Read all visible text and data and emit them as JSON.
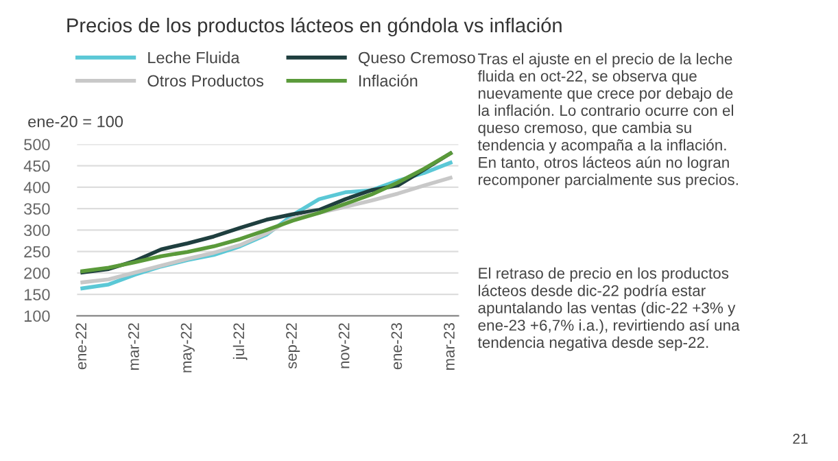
{
  "chart_data": {
    "type": "line",
    "title": "Precios de los productos lácteos en góndola vs inflación",
    "ylabel": "ene-20 = 100",
    "categories": [
      "ene-22",
      null,
      "mar-22",
      null,
      "may-22",
      null,
      "jul-22",
      null,
      "sep-22",
      null,
      "nov-22",
      null,
      "ene-23",
      null,
      "mar-23"
    ],
    "series": [
      {
        "name": "Leche Fluida",
        "color": "#5bc8d6",
        "values": [
          164,
          173,
          196,
          215,
          230,
          242,
          262,
          289,
          335,
          372,
          388,
          393,
          415,
          433,
          457
        ]
      },
      {
        "name": "Queso Cremoso",
        "color": "#1f3f3f",
        "values": [
          201,
          209,
          228,
          255,
          269,
          285,
          305,
          324,
          337,
          347,
          372,
          393,
          404,
          441,
          479
        ]
      },
      {
        "name": "Otros Productos",
        "color": "#c8c8c8",
        "values": [
          178,
          185,
          201,
          217,
          233,
          247,
          265,
          292,
          327,
          340,
          354,
          369,
          385,
          404,
          422
        ]
      },
      {
        "name": "Inflación",
        "color": "#5a9a3a",
        "values": [
          204,
          212,
          225,
          239,
          249,
          262,
          279,
          300,
          322,
          340,
          361,
          383,
          411,
          443,
          479
        ]
      }
    ],
    "ylim": [
      100,
      500
    ],
    "yticks": [
      100,
      150,
      200,
      250,
      300,
      350,
      400,
      450,
      500
    ],
    "grid": "y",
    "legend": "top",
    "marker": "none",
    "line_style": "solid",
    "annotations": [
      "Tras el ajuste en el precio de la leche\nfluida en oct-22, se observa que\nnuevamente que crece por debajo de\nla inflación. Lo contrario ocurre con el\nqueso cremoso, que cambia su\ntendencia y acompaña a la inflación.\nEn tanto, otros lácteos aún no logran\nrecomponer parcialmente sus precios.",
      "El retraso de precio en los productos\nlácteos desde dic-22 podría estar\napuntalando las ventas (dic-22 +3% y\nene-23 +6,7% i.a.), revirtiendo así una\ntendencia negativa desde sep-22.",
      "21"
    ]
  }
}
